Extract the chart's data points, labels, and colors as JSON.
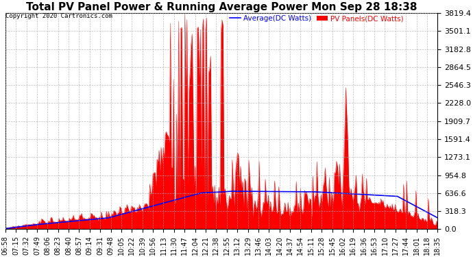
{
  "title": "Total PV Panel Power & Running Average Power Mon Sep 28 18:38",
  "copyright": "Copyright 2020 Cartronics.com",
  "legend_avg": "Average(DC Watts)",
  "legend_pv": "PV Panels(DC Watts)",
  "ylim": [
    0,
    3819.4
  ],
  "yticks": [
    0.0,
    318.3,
    636.6,
    954.8,
    1273.1,
    1591.4,
    1909.7,
    2228.0,
    2546.3,
    2864.5,
    3182.8,
    3501.1,
    3819.4
  ],
  "background_color": "#ffffff",
  "grid_color": "#aaaaaa",
  "pv_color": "red",
  "avg_color": "blue",
  "title_fontsize": 11,
  "xlabel_fontsize": 7,
  "ylabel_fontsize": 8,
  "x_labels": [
    "06:58",
    "07:15",
    "07:32",
    "07:49",
    "08:06",
    "08:23",
    "08:40",
    "08:57",
    "09:14",
    "09:31",
    "09:48",
    "10:05",
    "10:22",
    "10:39",
    "10:56",
    "11:13",
    "11:30",
    "11:47",
    "12:04",
    "12:21",
    "12:38",
    "12:55",
    "13:12",
    "13:29",
    "13:46",
    "14:03",
    "14:20",
    "14:37",
    "14:54",
    "15:11",
    "15:28",
    "15:45",
    "16:02",
    "16:19",
    "16:36",
    "16:53",
    "17:10",
    "17:27",
    "17:44",
    "18:01",
    "18:18",
    "18:35"
  ]
}
